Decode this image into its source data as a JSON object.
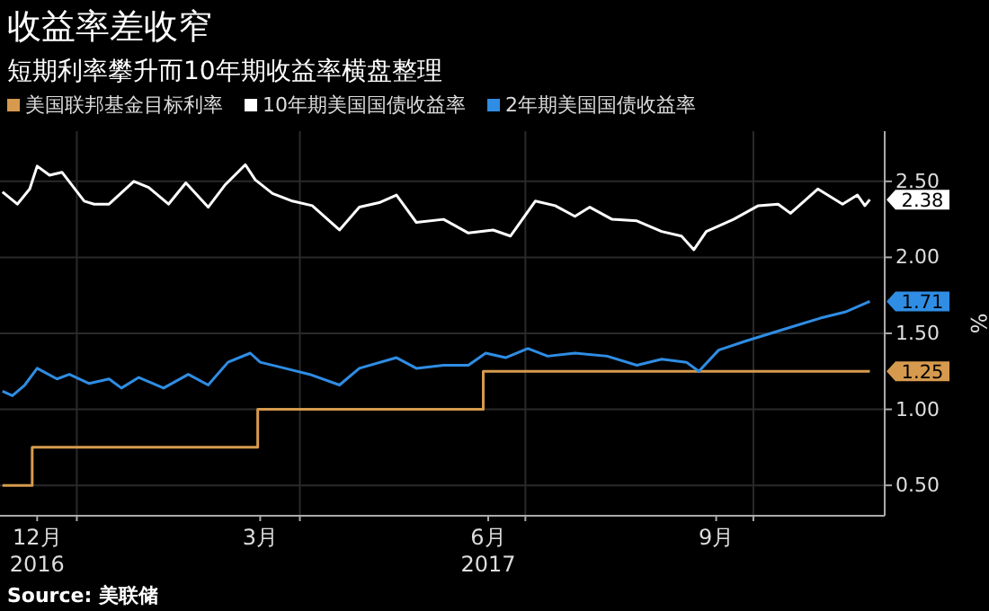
{
  "chart_data": {
    "type": "line",
    "title": "收益率差收窄",
    "subtitle": "短期利率攀升而10年期收益率横盘整理",
    "ylabel": "%",
    "series": [
      {
        "name": "美国联邦基金目标利率",
        "type": "step",
        "color": "#d69a4e",
        "x": [
          "2016-12-02",
          "2016-12-14",
          "2017-03-15",
          "2017-06-14",
          "2017-11-17"
        ],
        "values": [
          0.5,
          0.75,
          1.0,
          1.25,
          1.25
        ]
      },
      {
        "name": "10年期美国国债收益率",
        "color": "#ffffff",
        "x": [
          "2016-12-02",
          "2016-12-08",
          "2016-12-13",
          "2016-12-16",
          "2016-12-21",
          "2016-12-26",
          "2017-01-04",
          "2017-01-08",
          "2017-01-14",
          "2017-01-24",
          "2017-01-30",
          "2017-02-07",
          "2017-02-14",
          "2017-02-23",
          "2017-03-02",
          "2017-03-10",
          "2017-03-14",
          "2017-03-21",
          "2017-03-29",
          "2017-04-06",
          "2017-04-17",
          "2017-04-25",
          "2017-05-03",
          "2017-05-10",
          "2017-05-18",
          "2017-05-29",
          "2017-06-08",
          "2017-06-18",
          "2017-06-25",
          "2017-07-05",
          "2017-07-13",
          "2017-07-21",
          "2017-07-27",
          "2017-08-05",
          "2017-08-15",
          "2017-08-25",
          "2017-09-02",
          "2017-09-07",
          "2017-09-12",
          "2017-09-23",
          "2017-10-03",
          "2017-10-11",
          "2017-10-16",
          "2017-10-27",
          "2017-11-06",
          "2017-11-12",
          "2017-11-15",
          "2017-11-17"
        ],
        "values": [
          2.43,
          2.35,
          2.45,
          2.6,
          2.54,
          2.56,
          2.37,
          2.35,
          2.35,
          2.5,
          2.46,
          2.35,
          2.49,
          2.33,
          2.48,
          2.61,
          2.51,
          2.42,
          2.37,
          2.34,
          2.18,
          2.33,
          2.36,
          2.41,
          2.23,
          2.25,
          2.16,
          2.18,
          2.14,
          2.37,
          2.34,
          2.27,
          2.33,
          2.25,
          2.24,
          2.17,
          2.14,
          2.05,
          2.17,
          2.25,
          2.34,
          2.35,
          2.29,
          2.45,
          2.35,
          2.41,
          2.34,
          2.38
        ]
      },
      {
        "name": "2年期美国国债收益率",
        "color": "#2f8de4",
        "x": [
          "2016-12-02",
          "2016-12-06",
          "2016-12-11",
          "2016-12-16",
          "2016-12-24",
          "2016-12-29",
          "2017-01-06",
          "2017-01-14",
          "2017-01-19",
          "2017-01-26",
          "2017-02-05",
          "2017-02-15",
          "2017-02-23",
          "2017-03-03",
          "2017-03-12",
          "2017-03-16",
          "2017-03-26",
          "2017-04-05",
          "2017-04-17",
          "2017-04-25",
          "2017-05-10",
          "2017-05-18",
          "2017-05-29",
          "2017-06-08",
          "2017-06-15",
          "2017-06-23",
          "2017-07-02",
          "2017-07-10",
          "2017-07-21",
          "2017-08-03",
          "2017-08-15",
          "2017-08-25",
          "2017-09-04",
          "2017-09-09",
          "2017-09-17",
          "2017-09-28",
          "2017-10-08",
          "2017-10-18",
          "2017-10-28",
          "2017-11-07",
          "2017-11-17"
        ],
        "values": [
          1.12,
          1.09,
          1.16,
          1.27,
          1.2,
          1.23,
          1.17,
          1.2,
          1.14,
          1.21,
          1.14,
          1.23,
          1.16,
          1.31,
          1.37,
          1.31,
          1.27,
          1.23,
          1.16,
          1.27,
          1.34,
          1.27,
          1.29,
          1.29,
          1.37,
          1.34,
          1.4,
          1.35,
          1.37,
          1.35,
          1.29,
          1.33,
          1.31,
          1.25,
          1.39,
          1.45,
          1.5,
          1.55,
          1.6,
          1.64,
          1.71
        ]
      }
    ],
    "xlim": [
      "2016-12-01",
      "2017-11-23"
    ],
    "xticks": [
      {
        "value": "2016-12-16",
        "label": "12月\n2016"
      },
      {
        "value": "2017-01-01",
        "label": null
      },
      {
        "value": "2017-03-16",
        "label": "3月"
      },
      {
        "value": "2017-04-01",
        "label": null
      },
      {
        "value": "2017-06-16",
        "label": "6月\n2017"
      },
      {
        "value": "2017-07-01",
        "label": null
      },
      {
        "value": "2017-09-16",
        "label": "9月"
      },
      {
        "value": "2017-10-01",
        "label": null
      }
    ],
    "ylim": [
      0.3,
      2.83
    ],
    "yticks": [
      {
        "value": 0.5,
        "label": "0.50"
      },
      {
        "value": 1.0,
        "label": "1.00"
      },
      {
        "value": 1.5,
        "label": "1.50"
      },
      {
        "value": 2.0,
        "label": "2.00"
      },
      {
        "value": 2.5,
        "label": "2.50"
      }
    ],
    "grid": true,
    "legend": "top left",
    "marker": "none",
    "line_style": "solid",
    "annotations": [
      {
        "text": "2.38",
        "x": "2017-11-17",
        "y": 2.38
      },
      {
        "text": "1.71",
        "x": "2017-11-17",
        "y": 1.71
      },
      {
        "text": "1.25",
        "x": "2017-11-17",
        "y": 1.25
      },
      "Source: 美联储"
    ]
  }
}
